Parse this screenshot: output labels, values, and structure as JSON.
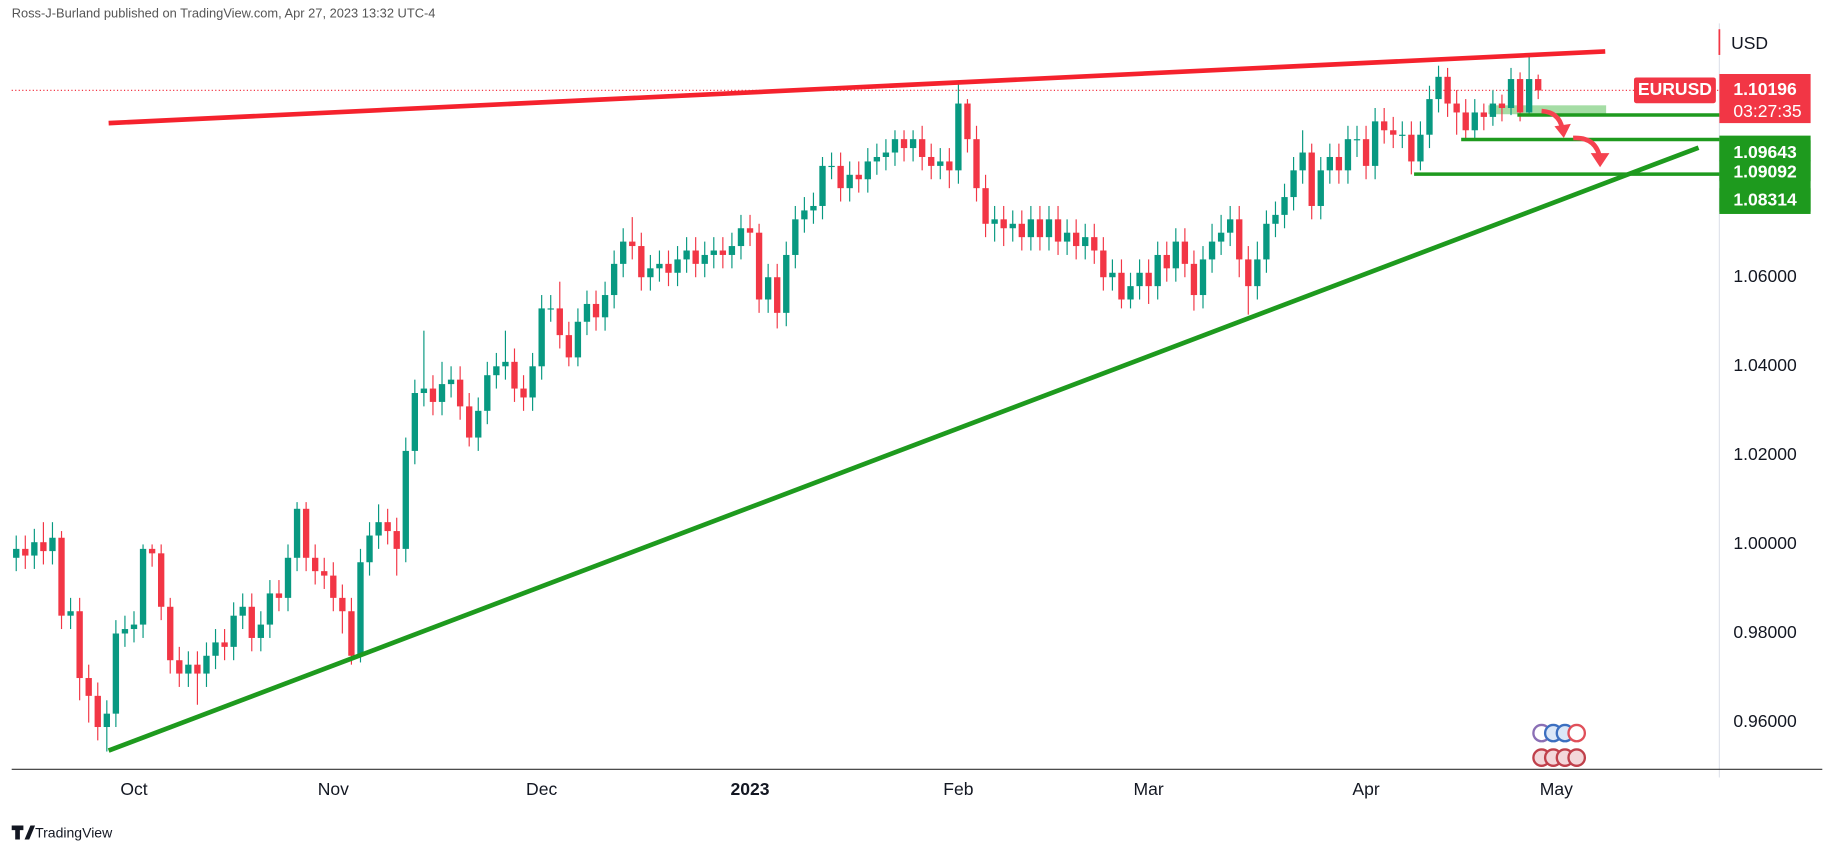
{
  "chart_data": {
    "type": "candlestick",
    "attribution": "Ross-J-Burland published on TradingView.com, Apr 27, 2023 13:32 UTC-4",
    "symbol": "EURUSD",
    "currency": "USD",
    "countdown": "03:27:35",
    "footer": "TradingView",
    "up_color": "#089981",
    "down_color": "#f23645",
    "grid": false,
    "xlim": [
      -0.5,
      188
    ],
    "xticks": [
      {
        "value": 13,
        "label": "Oct"
      },
      {
        "value": 35,
        "label": "Nov"
      },
      {
        "value": 58,
        "label": "Dec"
      },
      {
        "value": 81,
        "label": "2023"
      },
      {
        "value": 104,
        "label": "Feb"
      },
      {
        "value": 125,
        "label": "Mar"
      },
      {
        "value": 149,
        "label": "Apr"
      },
      {
        "value": 170,
        "label": "May"
      }
    ],
    "ylim": [
      0.9495,
      1.117
    ],
    "yticks": [
      {
        "value": 0.96,
        "label": "0.96000"
      },
      {
        "value": 0.98,
        "label": "0.98000"
      },
      {
        "value": 1.0,
        "label": "1.00000"
      },
      {
        "value": 1.02,
        "label": "1.02000"
      },
      {
        "value": 1.04,
        "label": "1.04000"
      },
      {
        "value": 1.06,
        "label": "1.06000"
      }
    ],
    "open": [
      0.997,
      0.999,
      0.9975,
      1.0005,
      0.9985,
      1.0015,
      0.984,
      0.985,
      0.97,
      0.966,
      0.959,
      0.962,
      0.98,
      0.981,
      0.982,
      0.999,
      0.998,
      0.986,
      0.974,
      0.971,
      0.973,
      0.971,
      0.975,
      0.978,
      0.977,
      0.984,
      0.986,
      0.979,
      0.982,
      0.989,
      0.988,
      0.997,
      1.008,
      0.997,
      0.994,
      0.993,
      0.988,
      0.985,
      0.975,
      0.996,
      1.002,
      1.005,
      1.003,
      0.999,
      1.021,
      1.034,
      1.035,
      1.032,
      1.036,
      1.037,
      1.031,
      1.024,
      1.03,
      1.038,
      1.04,
      1.041,
      1.035,
      1.033,
      1.04,
      1.053,
      1.053,
      1.047,
      1.042,
      1.05,
      1.054,
      1.051,
      1.056,
      1.063,
      1.068,
      1.067,
      1.06,
      1.062,
      1.063,
      1.061,
      1.064,
      1.066,
      1.063,
      1.065,
      1.066,
      1.065,
      1.067,
      1.071,
      1.07,
      1.055,
      1.06,
      1.052,
      1.065,
      1.073,
      1.075,
      1.076,
      1.085,
      1.085,
      1.08,
      1.083,
      1.082,
      1.086,
      1.087,
      1.088,
      1.091,
      1.089,
      1.091,
      1.087,
      1.085,
      1.086,
      1.084,
      1.099,
      1.091,
      1.08,
      1.072,
      1.073,
      1.071,
      1.072,
      1.069,
      1.073,
      1.069,
      1.073,
      1.068,
      1.07,
      1.067,
      1.069,
      1.066,
      1.06,
      1.061,
      1.055,
      1.058,
      1.061,
      1.058,
      1.065,
      1.062,
      1.068,
      1.063,
      1.056,
      1.064,
      1.068,
      1.07,
      1.073,
      1.064,
      1.058,
      1.064,
      1.072,
      1.074,
      1.078,
      1.084,
      1.088,
      1.076,
      1.084,
      1.087,
      1.084,
      1.091,
      1.091,
      1.085,
      1.095,
      1.093,
      1.092,
      1.092,
      1.086,
      1.092,
      1.1,
      1.105,
      1.099,
      1.097,
      1.093,
      1.097,
      1.096,
      1.099,
      1.098,
      1.1045,
      1.097,
      1.1045
    ],
    "high": [
      1.002,
      1.002,
      1.0035,
      1.005,
      1.005,
      1.003,
      0.988,
      0.988,
      0.973,
      0.969,
      0.965,
      0.983,
      0.984,
      0.985,
      1.0,
      1.0,
      1.0,
      0.988,
      0.977,
      0.976,
      0.976,
      0.978,
      0.981,
      0.981,
      0.987,
      0.989,
      0.989,
      0.985,
      0.992,
      0.992,
      1.0,
      1.0095,
      1.0095,
      1.0,
      0.997,
      0.996,
      0.991,
      0.988,
      0.999,
      1.005,
      1.009,
      1.008,
      1.006,
      1.024,
      1.037,
      1.048,
      1.038,
      1.041,
      1.04,
      1.04,
      1.034,
      1.033,
      1.041,
      1.043,
      1.048,
      1.044,
      1.038,
      1.043,
      1.056,
      1.056,
      1.059,
      1.05,
      1.053,
      1.057,
      1.057,
      1.059,
      1.066,
      1.071,
      1.0735,
      1.07,
      1.065,
      1.066,
      1.066,
      1.067,
      1.069,
      1.069,
      1.068,
      1.069,
      1.069,
      1.07,
      1.074,
      1.074,
      1.072,
      1.063,
      1.063,
      1.068,
      1.076,
      1.078,
      1.079,
      1.087,
      1.088,
      1.088,
      1.086,
      1.086,
      1.089,
      1.09,
      1.091,
      1.093,
      1.093,
      1.093,
      1.094,
      1.09,
      1.089,
      1.089,
      1.1033,
      1.1,
      1.094,
      1.083,
      1.076,
      1.076,
      1.075,
      1.075,
      1.076,
      1.076,
      1.076,
      1.076,
      1.073,
      1.073,
      1.072,
      1.072,
      1.069,
      1.064,
      1.064,
      1.061,
      1.064,
      1.064,
      1.068,
      1.068,
      1.071,
      1.071,
      1.066,
      1.067,
      1.072,
      1.074,
      1.076,
      1.076,
      1.067,
      1.068,
      1.075,
      1.077,
      1.081,
      1.087,
      1.093,
      1.09,
      1.087,
      1.09,
      1.09,
      1.094,
      1.094,
      1.094,
      1.098,
      1.098,
      1.096,
      1.095,
      1.095,
      1.095,
      1.103,
      1.1075,
      1.107,
      1.102,
      1.1,
      1.1,
      1.099,
      1.102,
      1.101,
      1.107,
      1.106,
      1.1095,
      1.1055
    ],
    "low": [
      0.994,
      0.9945,
      0.9945,
      0.9955,
      0.9955,
      0.981,
      0.981,
      0.965,
      0.96,
      0.956,
      0.9535,
      0.959,
      0.977,
      0.978,
      0.979,
      0.995,
      0.983,
      0.971,
      0.968,
      0.968,
      0.964,
      0.968,
      0.972,
      0.974,
      0.974,
      0.981,
      0.976,
      0.976,
      0.979,
      0.985,
      0.985,
      0.994,
      0.994,
      0.991,
      0.99,
      0.985,
      0.98,
      0.973,
      0.9735,
      0.993,
      0.999,
      1.0,
      0.993,
      0.996,
      1.018,
      1.031,
      1.029,
      1.029,
      1.033,
      1.028,
      1.022,
      1.021,
      1.027,
      1.035,
      1.037,
      1.032,
      1.03,
      1.03,
      1.037,
      1.05,
      1.044,
      1.04,
      1.04,
      1.047,
      1.048,
      1.048,
      1.053,
      1.06,
      1.064,
      1.057,
      1.057,
      1.059,
      1.058,
      1.058,
      1.061,
      1.06,
      1.06,
      1.062,
      1.062,
      1.062,
      1.064,
      1.067,
      1.052,
      1.052,
      1.0485,
      1.049,
      1.062,
      1.07,
      1.072,
      1.073,
      1.082,
      1.077,
      1.077,
      1.079,
      1.079,
      1.083,
      1.084,
      1.085,
      1.086,
      1.086,
      1.084,
      1.082,
      1.082,
      1.08,
      1.081,
      1.088,
      1.077,
      1.069,
      1.068,
      1.067,
      1.068,
      1.066,
      1.066,
      1.066,
      1.066,
      1.065,
      1.065,
      1.064,
      1.064,
      1.063,
      1.057,
      1.057,
      1.053,
      1.053,
      1.055,
      1.054,
      1.055,
      1.059,
      1.059,
      1.06,
      1.0525,
      1.053,
      1.061,
      1.065,
      1.067,
      1.06,
      1.0516,
      1.055,
      1.061,
      1.069,
      1.071,
      1.075,
      1.081,
      1.073,
      1.073,
      1.081,
      1.081,
      1.081,
      1.087,
      1.082,
      1.082,
      1.09,
      1.089,
      1.089,
      1.0831,
      1.084,
      1.089,
      1.097,
      1.096,
      1.092,
      1.0909,
      1.091,
      1.093,
      1.094,
      1.095,
      1.0964,
      1.095,
      1.0966,
      1.1
    ],
    "close": [
      0.999,
      0.9975,
      1.0005,
      0.9985,
      1.0015,
      0.984,
      0.985,
      0.97,
      0.966,
      0.959,
      0.962,
      0.98,
      0.981,
      0.982,
      0.999,
      0.998,
      0.986,
      0.974,
      0.971,
      0.973,
      0.971,
      0.975,
      0.978,
      0.977,
      0.984,
      0.986,
      0.979,
      0.982,
      0.989,
      0.988,
      0.997,
      1.008,
      0.997,
      0.994,
      0.993,
      0.988,
      0.985,
      0.975,
      0.996,
      1.002,
      1.005,
      1.003,
      0.999,
      1.021,
      1.034,
      1.035,
      1.032,
      1.036,
      1.037,
      1.031,
      1.024,
      1.03,
      1.038,
      1.04,
      1.041,
      1.035,
      1.033,
      1.04,
      1.053,
      1.053,
      1.047,
      1.042,
      1.05,
      1.054,
      1.051,
      1.056,
      1.063,
      1.068,
      1.067,
      1.06,
      1.062,
      1.063,
      1.061,
      1.064,
      1.066,
      1.063,
      1.065,
      1.066,
      1.065,
      1.067,
      1.071,
      1.07,
      1.055,
      1.06,
      1.052,
      1.065,
      1.073,
      1.075,
      1.076,
      1.085,
      1.085,
      1.08,
      1.083,
      1.082,
      1.086,
      1.087,
      1.088,
      1.091,
      1.089,
      1.091,
      1.087,
      1.085,
      1.086,
      1.084,
      1.099,
      1.091,
      1.08,
      1.072,
      1.073,
      1.071,
      1.072,
      1.069,
      1.073,
      1.069,
      1.073,
      1.068,
      1.07,
      1.067,
      1.069,
      1.066,
      1.06,
      1.061,
      1.055,
      1.058,
      1.061,
      1.058,
      1.065,
      1.062,
      1.068,
      1.063,
      1.056,
      1.064,
      1.068,
      1.07,
      1.073,
      1.064,
      1.058,
      1.064,
      1.072,
      1.074,
      1.078,
      1.084,
      1.088,
      1.076,
      1.084,
      1.087,
      1.084,
      1.091,
      1.091,
      1.085,
      1.095,
      1.093,
      1.092,
      1.092,
      1.086,
      1.092,
      1.1,
      1.105,
      1.099,
      1.097,
      1.093,
      1.097,
      1.096,
      1.099,
      1.098,
      1.1045,
      1.097,
      1.1045,
      1.10196
    ],
    "levels": [
      {
        "value": 1.09643,
        "from_index": 165.7
      },
      {
        "value": 1.09092,
        "from_index": 159.5
      },
      {
        "value": 1.08314,
        "from_index": 154.3
      }
    ],
    "level_color": "#1e9a1e",
    "trendlines": [
      {
        "color": "#f5222d",
        "x": [
          10.2,
          175.4
        ],
        "values": [
          1.0946,
          1.1107
        ]
      },
      {
        "color": "#1e9a1e",
        "x": [
          10.2,
          185.7
        ],
        "values": [
          0.9537,
          1.0891
        ]
      }
    ],
    "zone": {
      "color": "#7fcf7f",
      "x": [
        162.5,
        175.5
      ],
      "values": [
        1.0966,
        1.0986
      ]
    }
  }
}
